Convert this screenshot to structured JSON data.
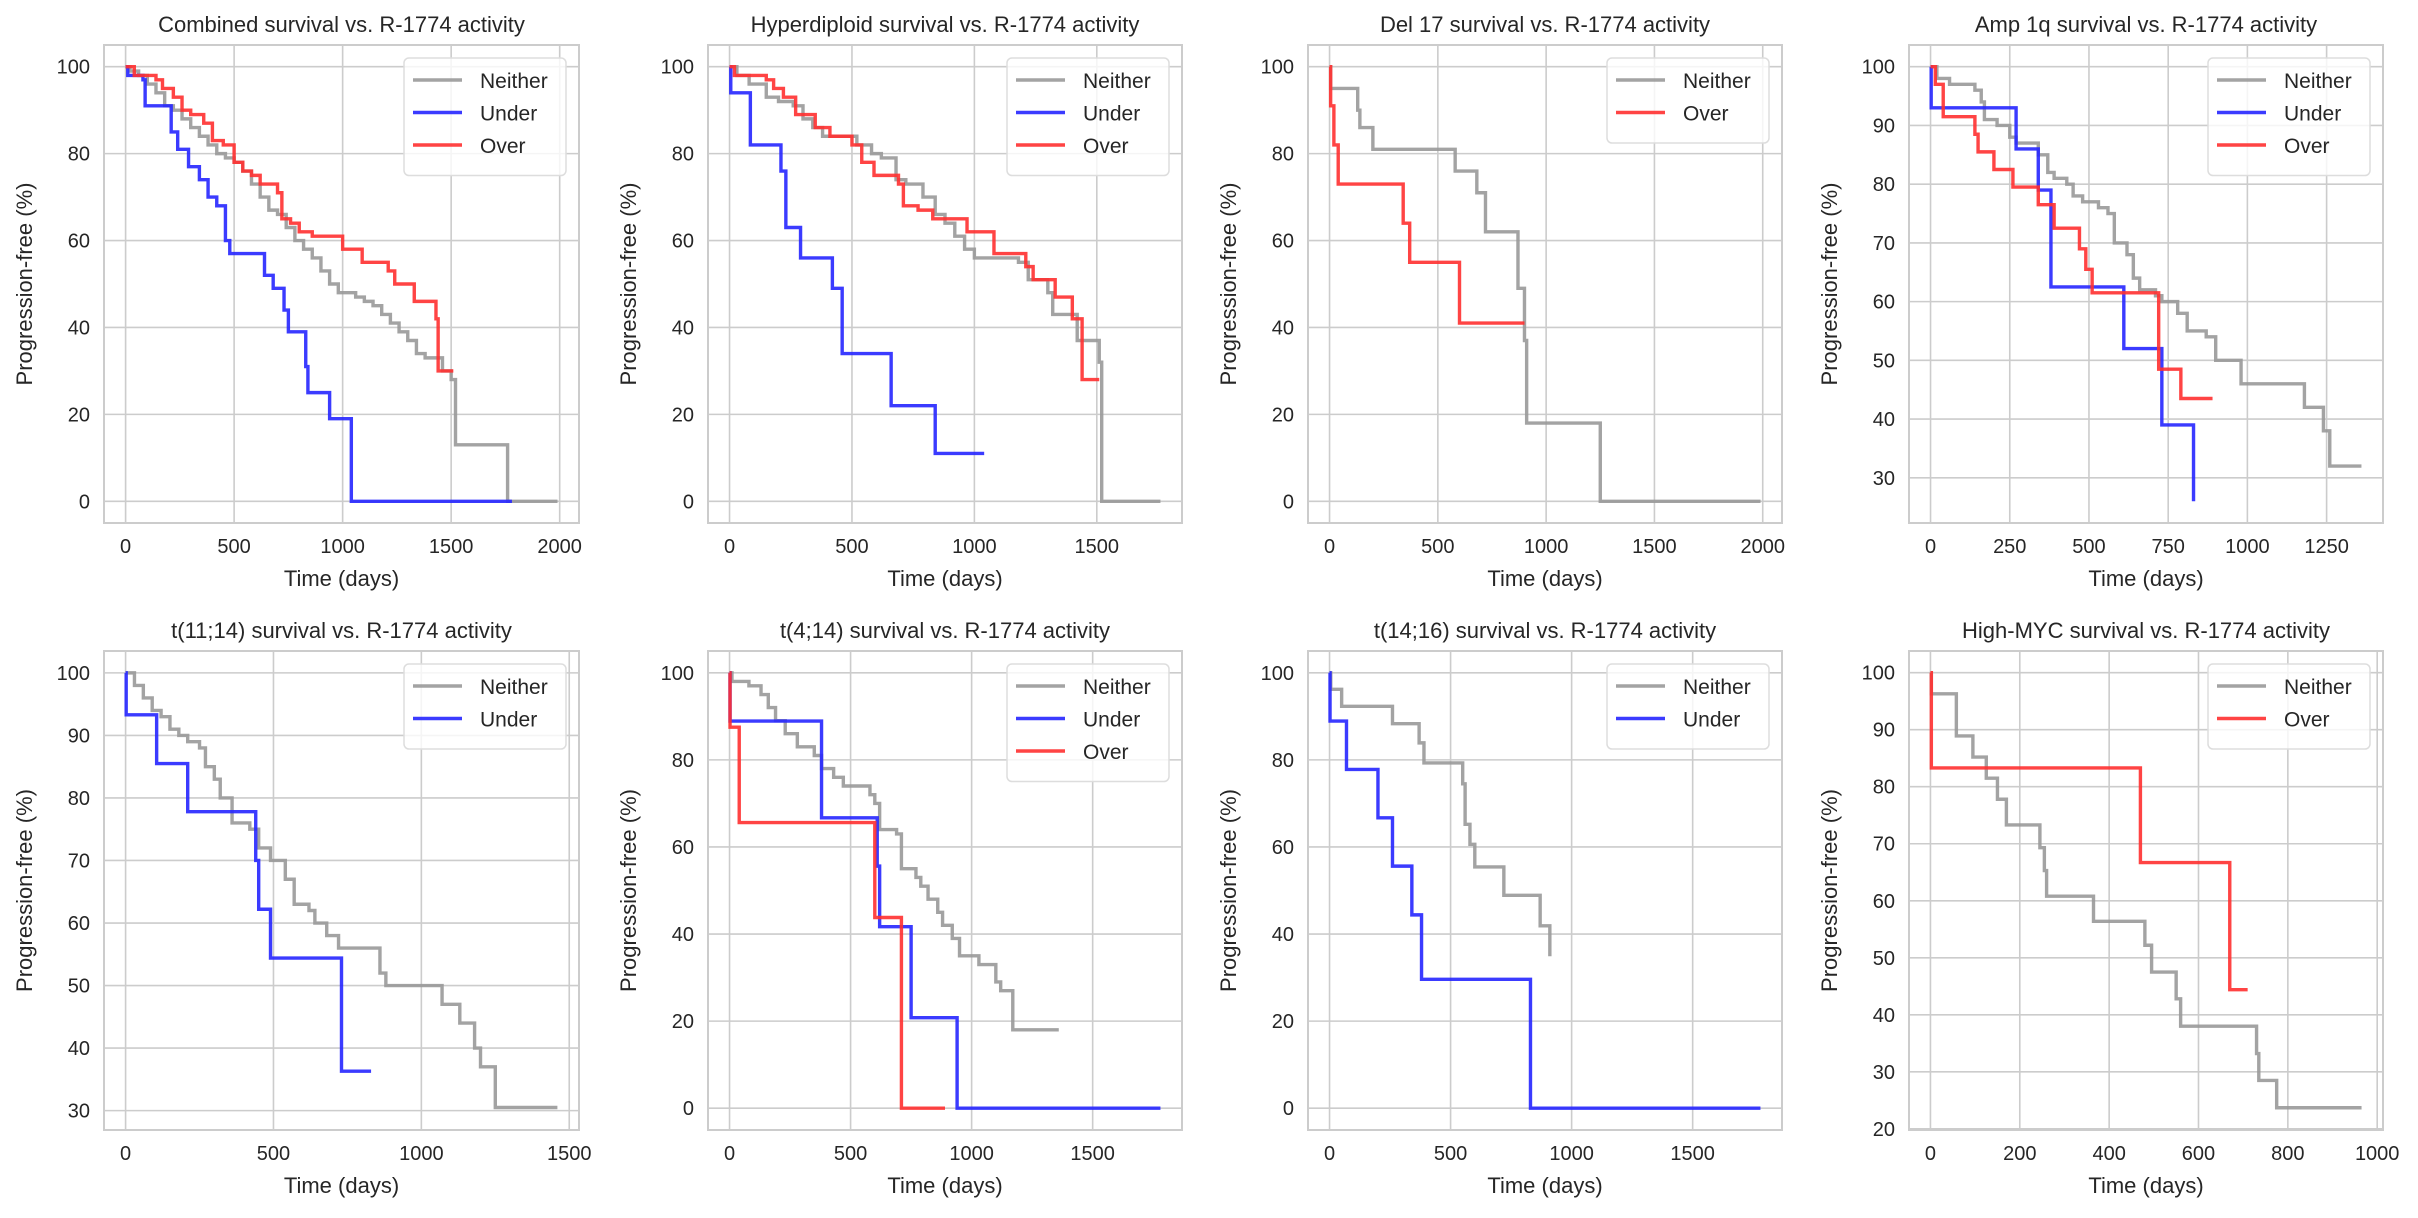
{
  "figure": {
    "colors": {
      "Neither": "#999999",
      "Under": "#2626ff",
      "Over": "#ff3030",
      "grid": "#cccccc",
      "frame": "#cccccc"
    }
  },
  "chart_data": [
    {
      "type": "line",
      "title": "Combined survival vs. R-1774 activity",
      "xlabel": "Time (days)",
      "ylabel": "Progression-free (%)",
      "xlim": [
        -99.5,
        2089
      ],
      "ylim": [
        -5,
        105
      ],
      "xticks": [
        0,
        500,
        1000,
        1500,
        2000
      ],
      "yticks": [
        0,
        20,
        40,
        60,
        80,
        100
      ],
      "grid": true,
      "legend_position": "top-right",
      "series": [
        {
          "name": "Neither",
          "step": true,
          "x": [
            0,
            20,
            60,
            100,
            140,
            180,
            220,
            260,
            300,
            340,
            380,
            420,
            460,
            500,
            540,
            580,
            620,
            660,
            700,
            740,
            780,
            820,
            860,
            900,
            940,
            980,
            1020,
            1060,
            1100,
            1140,
            1180,
            1220,
            1260,
            1300,
            1340,
            1380,
            1420,
            1460,
            1500,
            1520,
            1760,
            1990
          ],
          "y": [
            100,
            99,
            98,
            96,
            94,
            91,
            90,
            88,
            86,
            84,
            82,
            80,
            79,
            78,
            76,
            73,
            70,
            67,
            66,
            63,
            60,
            58,
            56,
            53,
            50,
            48,
            48,
            47,
            46,
            45,
            43,
            41,
            39,
            37,
            34,
            33,
            33,
            30,
            28,
            13,
            0,
            0
          ]
        },
        {
          "name": "Under",
          "step": true,
          "x": [
            0,
            10,
            80,
            90,
            200,
            210,
            240,
            290,
            340,
            380,
            420,
            460,
            480,
            620,
            640,
            680,
            730,
            750,
            830,
            840,
            940,
            1040,
            1780
          ],
          "y": [
            100,
            98,
            97,
            91,
            91,
            85,
            81,
            77,
            74,
            70,
            68,
            60,
            57,
            57,
            52,
            49,
            44,
            39,
            31,
            25,
            19,
            0,
            0
          ]
        },
        {
          "name": "Over",
          "step": true,
          "x": [
            0,
            40,
            140,
            170,
            220,
            260,
            300,
            360,
            400,
            450,
            500,
            540,
            580,
            620,
            700,
            720,
            760,
            800,
            860,
            1000,
            1090,
            1210,
            1240,
            1330,
            1430,
            1440,
            1510
          ],
          "y": [
            100,
            98,
            97,
            95,
            93,
            90,
            89,
            87,
            83,
            82,
            78,
            76,
            75,
            73,
            71,
            65,
            64,
            62,
            61,
            58,
            55,
            53,
            50,
            46,
            42,
            30,
            30
          ]
        }
      ]
    },
    {
      "type": "line",
      "title": "Hyperdiploid survival vs. R-1774 activity",
      "xlabel": "Time (days)",
      "ylabel": "Progression-free (%)",
      "xlim": [
        -88,
        1848
      ],
      "ylim": [
        -5,
        105
      ],
      "xticks": [
        0,
        500,
        1000,
        1500
      ],
      "yticks": [
        0,
        20,
        40,
        60,
        80,
        100
      ],
      "grid": true,
      "legend_position": "top-right",
      "series": [
        {
          "name": "Neither",
          "step": true,
          "x": [
            0,
            30,
            80,
            150,
            200,
            260,
            300,
            340,
            380,
            460,
            520,
            580,
            620,
            680,
            720,
            790,
            840,
            880,
            920,
            960,
            1000,
            1180,
            1220,
            1300,
            1320,
            1420,
            1510,
            1520,
            1760
          ],
          "y": [
            100,
            98,
            96,
            93,
            92,
            91,
            88,
            86,
            84,
            84,
            82,
            80,
            79,
            74,
            73,
            70,
            66,
            64,
            61,
            58,
            56,
            55,
            51,
            48,
            43,
            37,
            32,
            0,
            0
          ]
        },
        {
          "name": "Under",
          "step": true,
          "x": [
            0,
            5,
            85,
            210,
            230,
            290,
            420,
            460,
            660,
            840,
            1040
          ],
          "y": [
            100,
            94,
            82,
            76,
            63,
            56,
            49,
            34,
            22,
            11,
            11
          ]
        },
        {
          "name": "Over",
          "step": true,
          "x": [
            0,
            20,
            150,
            180,
            220,
            270,
            350,
            410,
            500,
            540,
            590,
            690,
            710,
            770,
            830,
            970,
            1080,
            1210,
            1240,
            1330,
            1400,
            1440,
            1510
          ],
          "y": [
            100,
            98,
            97,
            95,
            93,
            89,
            86,
            84,
            82,
            78,
            75,
            73,
            68,
            67,
            65,
            62,
            57,
            54,
            51,
            47,
            42,
            28,
            28
          ]
        }
      ]
    },
    {
      "type": "line",
      "title": "Del 17 survival vs. R-1774 activity",
      "xlabel": "Time (days)",
      "ylabel": "Progression-free (%)",
      "xlim": [
        -99.5,
        2089
      ],
      "ylim": [
        -5,
        105
      ],
      "xticks": [
        0,
        500,
        1000,
        1500,
        2000
      ],
      "yticks": [
        0,
        20,
        40,
        60,
        80,
        100
      ],
      "grid": true,
      "legend_position": "top-right",
      "series": [
        {
          "name": "Neither",
          "step": true,
          "x": [
            0,
            5,
            130,
            140,
            200,
            580,
            680,
            720,
            870,
            900,
            910,
            1250,
            1990
          ],
          "y": [
            100,
            95,
            90,
            86,
            81,
            76,
            71,
            62,
            49,
            37,
            18,
            0,
            0
          ]
        },
        {
          "name": "Over",
          "step": true,
          "x": [
            0,
            5,
            20,
            40,
            340,
            370,
            600,
            900
          ],
          "y": [
            100,
            91,
            82,
            73,
            64,
            55,
            41,
            41
          ]
        }
      ]
    },
    {
      "type": "line",
      "title": "Amp 1q survival vs. R-1774 activity",
      "xlabel": "Time (days)",
      "ylabel": "Progression-free (%)",
      "xlim": [
        -68,
        1428
      ],
      "ylim": [
        22.3,
        103.7
      ],
      "xticks": [
        0,
        250,
        500,
        750,
        1000,
        1250
      ],
      "yticks": [
        30,
        40,
        50,
        60,
        70,
        80,
        90,
        100
      ],
      "grid": true,
      "legend_position": "top-right",
      "series": [
        {
          "name": "Neither",
          "step": true,
          "x": [
            0,
            20,
            60,
            140,
            160,
            170,
            210,
            250,
            270,
            340,
            370,
            390,
            430,
            450,
            480,
            530,
            560,
            580,
            620,
            640,
            660,
            710,
            730,
            780,
            810,
            870,
            900,
            980,
            1180,
            1240,
            1260,
            1360
          ],
          "y": [
            100,
            98,
            97,
            96,
            94,
            91,
            90,
            88,
            87,
            85,
            82,
            81,
            80,
            78,
            77,
            76,
            75,
            70,
            68,
            64,
            62,
            61,
            60,
            58,
            55,
            54,
            50,
            46,
            42,
            38,
            32,
            32
          ]
        },
        {
          "name": "Under",
          "step": true,
          "x": [
            0,
            2,
            270,
            340,
            380,
            610,
            730,
            830
          ],
          "y": [
            100,
            93,
            86,
            79,
            62.5,
            52,
            39,
            26
          ]
        },
        {
          "name": "Over",
          "step": true,
          "x": [
            0,
            15,
            40,
            140,
            150,
            200,
            260,
            340,
            390,
            470,
            490,
            510,
            720,
            790,
            890
          ],
          "y": [
            100,
            97,
            91.5,
            88.5,
            85.5,
            82.5,
            79.5,
            76.5,
            72.5,
            69,
            65.5,
            61.5,
            48.5,
            43.5,
            43.5
          ]
        }
      ]
    },
    {
      "type": "line",
      "title": "t(11;14) survival vs. R-1774 activity",
      "xlabel": "Time (days)",
      "ylabel": "Progression-free (%)",
      "xlim": [
        -73,
        1533
      ],
      "ylim": [
        26.9,
        103.5
      ],
      "xticks": [
        0,
        500,
        1000,
        1500
      ],
      "yticks": [
        30,
        40,
        50,
        60,
        70,
        80,
        90,
        100
      ],
      "grid": true,
      "legend_position": "top-right",
      "series": [
        {
          "name": "Neither",
          "step": true,
          "x": [
            0,
            30,
            60,
            90,
            120,
            150,
            180,
            210,
            250,
            270,
            300,
            320,
            360,
            420,
            450,
            490,
            540,
            570,
            620,
            640,
            680,
            720,
            860,
            880,
            1070,
            1130,
            1180,
            1200,
            1250,
            1460
          ],
          "y": [
            100,
            98,
            96,
            94,
            93,
            91,
            90,
            89,
            88,
            85,
            83,
            80,
            76,
            75,
            72,
            70,
            67,
            63,
            62,
            60,
            58,
            56,
            52,
            50,
            47,
            44,
            40,
            37,
            30.5,
            30.5
          ]
        },
        {
          "name": "Under",
          "step": true,
          "x": [
            0,
            2,
            105,
            210,
            440,
            450,
            490,
            730,
            830
          ],
          "y": [
            100,
            93.3,
            85.5,
            77.8,
            70,
            62.2,
            54.4,
            36.3,
            36.3
          ]
        }
      ]
    },
    {
      "type": "line",
      "title": "t(4;14) survival vs. R-1774 activity",
      "xlabel": "Time (days)",
      "ylabel": "Progression-free (%)",
      "xlim": [
        -89,
        1869
      ],
      "ylim": [
        -5,
        105
      ],
      "xticks": [
        0,
        500,
        1000,
        1500
      ],
      "yticks": [
        0,
        20,
        40,
        60,
        80,
        100
      ],
      "grid": true,
      "legend_position": "top-right",
      "search": null,
      "series": [
        {
          "name": "Neither",
          "step": true,
          "x": [
            0,
            10,
            80,
            130,
            160,
            190,
            230,
            280,
            350,
            380,
            430,
            470,
            580,
            600,
            620,
            690,
            710,
            770,
            790,
            820,
            860,
            880,
            920,
            950,
            1030,
            1100,
            1120,
            1170,
            1360
          ],
          "y": [
            100,
            98,
            97,
            95,
            92,
            89,
            86,
            83,
            81,
            78,
            76,
            74,
            72,
            70,
            64,
            63,
            55,
            53,
            51,
            48,
            45,
            42,
            39,
            35,
            33,
            29,
            27,
            18,
            18
          ]
        },
        {
          "name": "Under",
          "step": true,
          "x": [
            0,
            2,
            380,
            610,
            620,
            750,
            940,
            1780
          ],
          "y": [
            100,
            88.9,
            66.7,
            55.6,
            41.7,
            20.8,
            0,
            0
          ]
        },
        {
          "name": "Over",
          "step": true,
          "x": [
            0,
            2,
            40,
            600,
            710,
            890
          ],
          "y": [
            100,
            87.5,
            65.6,
            43.8,
            0,
            0
          ]
        }
      ]
    },
    {
      "type": "line",
      "title": "t(14;16) survival vs. R-1774 activity",
      "xlabel": "Time (days)",
      "ylabel": "Progression-free (%)",
      "xlim": [
        -89,
        1869
      ],
      "ylim": [
        -5,
        105
      ],
      "xticks": [
        0,
        500,
        1000,
        1500
      ],
      "yticks": [
        0,
        20,
        40,
        60,
        80,
        100
      ],
      "grid": true,
      "legend_position": "top-right",
      "series": [
        {
          "name": "Neither",
          "step": true,
          "x": [
            0,
            5,
            50,
            260,
            370,
            390,
            550,
            560,
            580,
            600,
            720,
            870,
            910
          ],
          "y": [
            100,
            96.2,
            92.3,
            88.3,
            83.9,
            79.3,
            74.5,
            65.2,
            60.6,
            55.4,
            48.9,
            41.9,
            34.9
          ]
        },
        {
          "name": "Under",
          "step": true,
          "x": [
            0,
            2,
            70,
            200,
            260,
            340,
            380,
            830,
            1780
          ],
          "y": [
            100,
            88.9,
            77.8,
            66.7,
            55.6,
            44.4,
            29.6,
            0,
            0
          ]
        }
      ]
    },
    {
      "type": "line",
      "title": "High-MYC survival vs. R-1774 activity",
      "xlabel": "Time (days)",
      "ylabel": "Progression-free (%)",
      "xlim": [
        -48,
        1013
      ],
      "ylim": [
        19.8,
        103.8
      ],
      "xticks": [
        0,
        200,
        400,
        600,
        800,
        1000
      ],
      "yticks": [
        20,
        30,
        40,
        50,
        60,
        70,
        80,
        90,
        100
      ],
      "grid": true,
      "legend_position": "top-right",
      "series": [
        {
          "name": "Neither",
          "step": true,
          "x": [
            0,
            2,
            58,
            95,
            125,
            150,
            170,
            245,
            255,
            260,
            365,
            480,
            495,
            550,
            560,
            730,
            735,
            775,
            965
          ],
          "y": [
            100,
            96.3,
            88.9,
            85.2,
            81.5,
            77.8,
            73.3,
            69.3,
            65.3,
            60.8,
            56.4,
            52.2,
            47.5,
            42.8,
            38,
            33.2,
            28.5,
            23.7,
            23.7
          ]
        },
        {
          "name": "Over",
          "step": true,
          "x": [
            0,
            2,
            470,
            670,
            710
          ],
          "y": [
            100,
            83.3,
            66.7,
            44.4,
            44.4
          ]
        }
      ]
    }
  ]
}
